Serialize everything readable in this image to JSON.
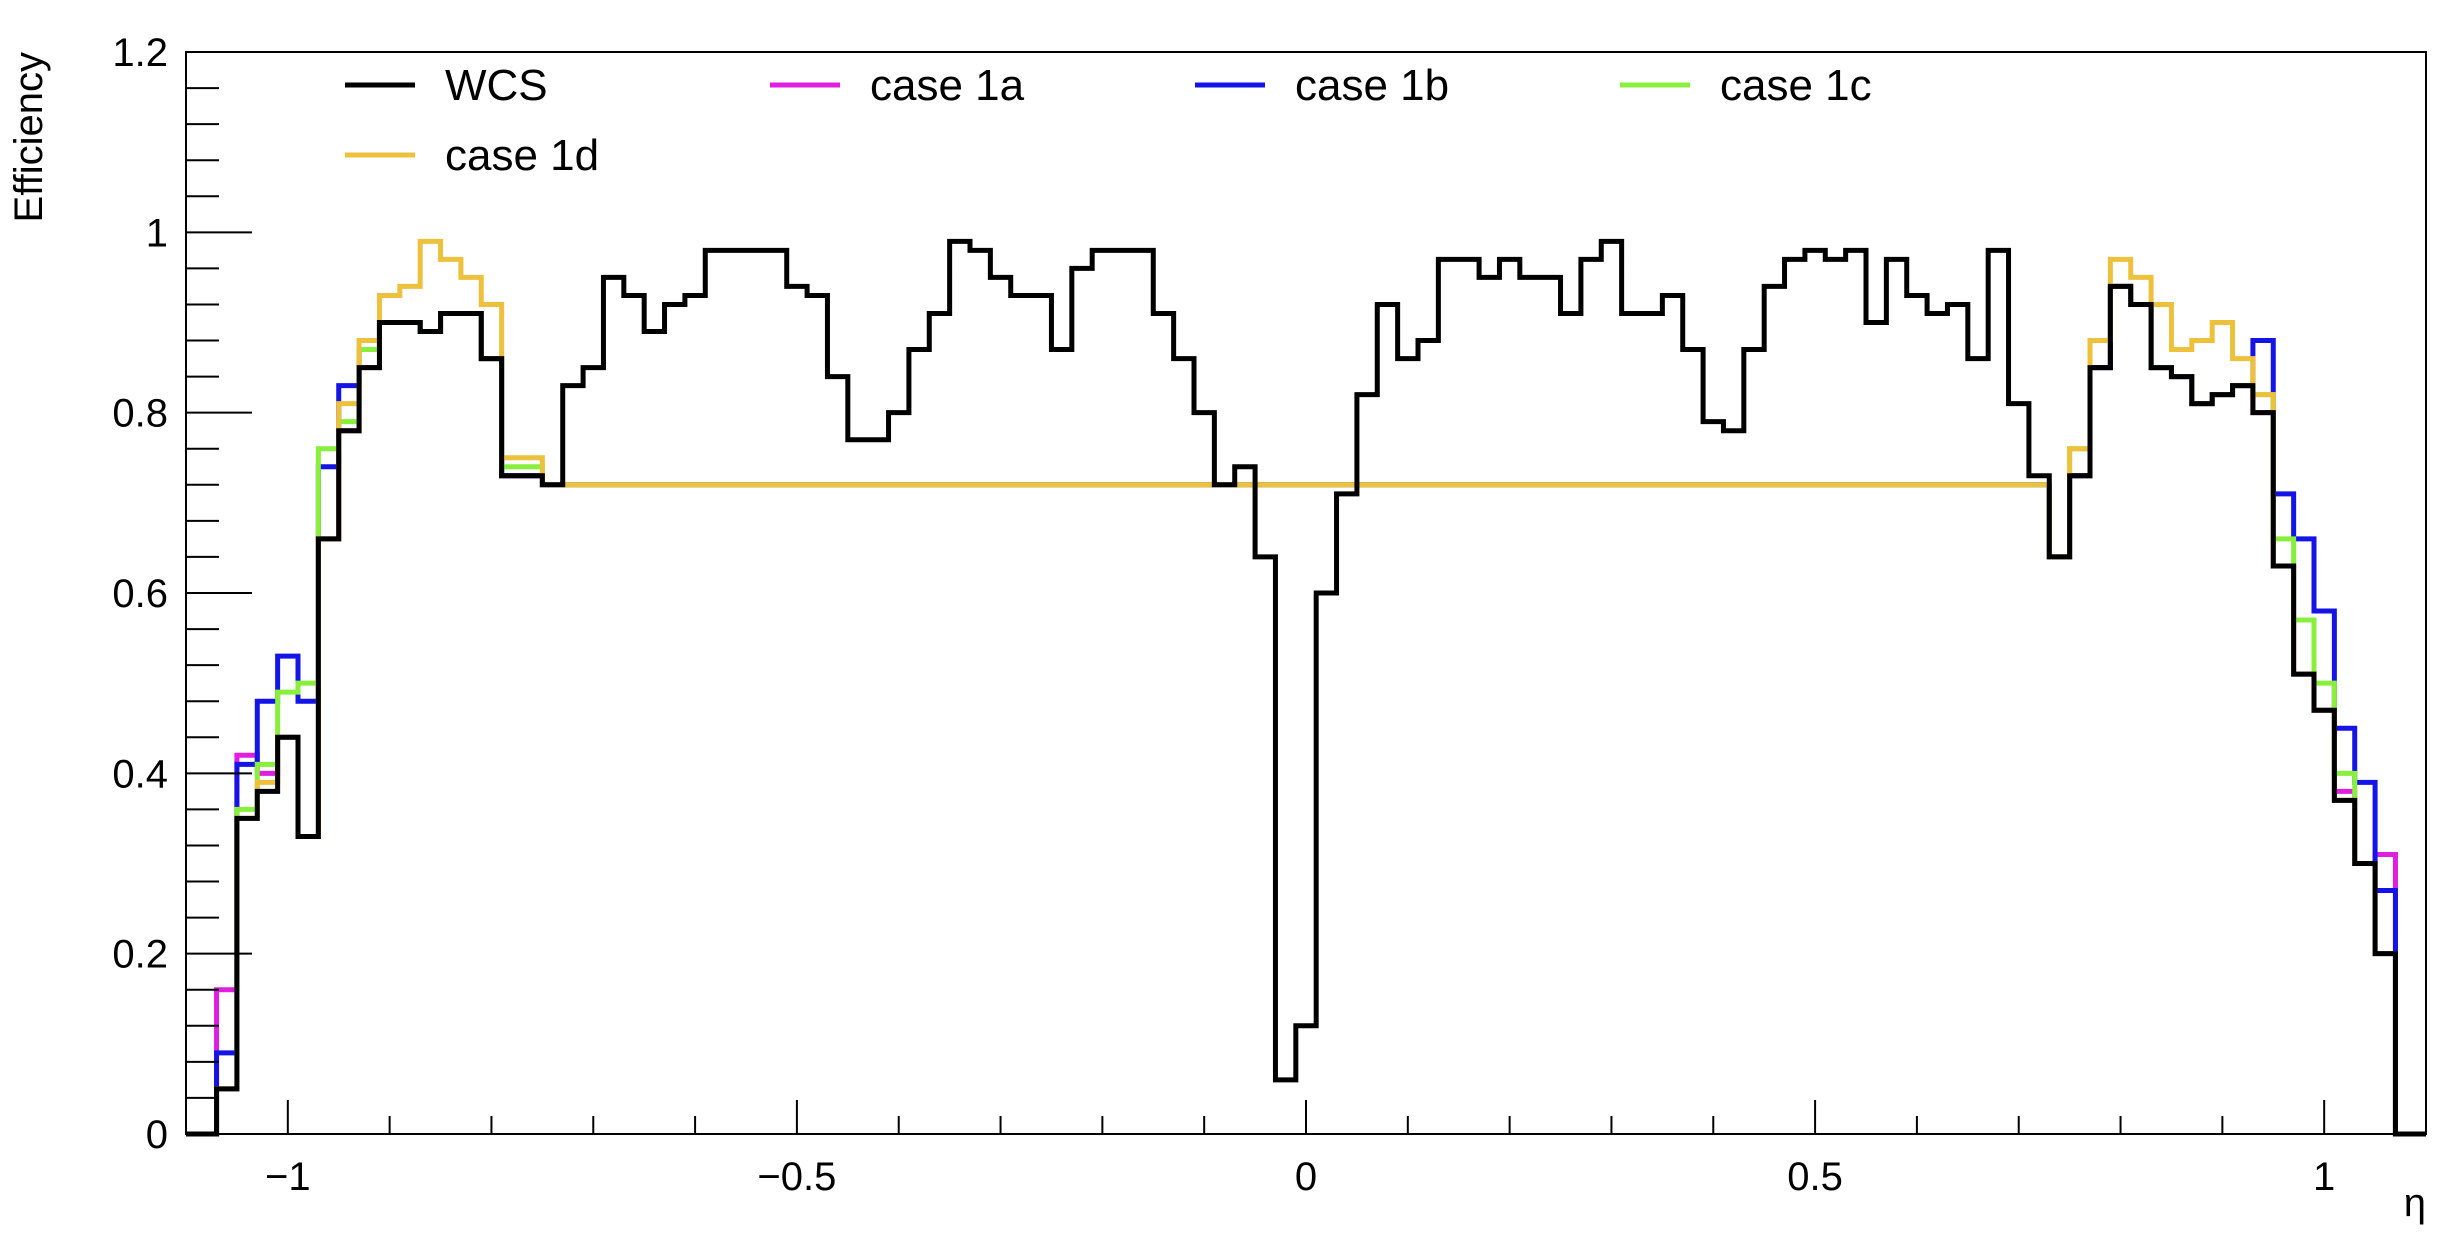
{
  "chart_data": {
    "type": "line",
    "style": "step-histogram",
    "xlabel": "η",
    "ylabel": "Efficiency",
    "xlim": [
      -1.1,
      1.1
    ],
    "ylim": [
      0,
      1.2
    ],
    "grid": false,
    "legend_placement": "top-left",
    "x_ticks": [
      {
        "value": -1,
        "label": "−1"
      },
      {
        "value": -0.5,
        "label": "−0.5"
      },
      {
        "value": 0,
        "label": "0"
      },
      {
        "value": 0.5,
        "label": "0.5"
      },
      {
        "value": 1,
        "label": "1"
      }
    ],
    "y_ticks": [
      {
        "value": 0,
        "label": "0"
      },
      {
        "value": 0.2,
        "label": "0.2"
      },
      {
        "value": 0.4,
        "label": "0.4"
      },
      {
        "value": 0.6,
        "label": "0.6"
      },
      {
        "value": 0.8,
        "label": "0.8"
      },
      {
        "value": 1,
        "label": "1"
      },
      {
        "value": 1.2,
        "label": "1.2"
      }
    ],
    "series": [
      {
        "name": "case 1a",
        "color": "#e01ee0",
        "points": [
          [
            -1.1,
            0
          ],
          [
            -1.07,
            0.16
          ],
          [
            -1.05,
            0.42
          ],
          [
            -1.03,
            0.4
          ],
          [
            -1.01,
            0.44
          ],
          [
            -0.99,
            0.33
          ],
          [
            -0.97,
            0.66
          ],
          [
            -0.95,
            0.78
          ],
          [
            -0.93,
            0.85
          ],
          [
            -0.91,
            0.9
          ],
          [
            -0.89,
            0.9
          ],
          [
            -0.87,
            0.89
          ],
          [
            -0.85,
            0.91
          ],
          [
            -0.83,
            0.91
          ],
          [
            -0.81,
            0.86
          ],
          [
            -0.79,
            0.73
          ],
          [
            -0.77,
            0.73
          ],
          [
            -0.75,
            0.72
          ],
          [
            0.73,
            0.64
          ],
          [
            0.75,
            0.73
          ],
          [
            0.77,
            0.85
          ],
          [
            0.79,
            0.94
          ],
          [
            0.81,
            0.92
          ],
          [
            0.83,
            0.85
          ],
          [
            0.85,
            0.84
          ],
          [
            0.87,
            0.81
          ],
          [
            0.89,
            0.82
          ],
          [
            0.91,
            0.83
          ],
          [
            0.93,
            0.8
          ],
          [
            0.95,
            0.63
          ],
          [
            0.97,
            0.51
          ],
          [
            0.99,
            0.47
          ],
          [
            1.01,
            0.38
          ],
          [
            1.03,
            0.3
          ],
          [
            1.05,
            0.31
          ],
          [
            1.07,
            0
          ]
        ]
      },
      {
        "name": "case 1b",
        "color": "#1414e6",
        "points": [
          [
            -1.1,
            0
          ],
          [
            -1.07,
            0.09
          ],
          [
            -1.05,
            0.41
          ],
          [
            -1.03,
            0.48
          ],
          [
            -1.01,
            0.53
          ],
          [
            -0.99,
            0.48
          ],
          [
            -0.97,
            0.74
          ],
          [
            -0.95,
            0.83
          ],
          [
            -0.93,
            0.87
          ],
          [
            -0.91,
            0.9
          ],
          [
            -0.89,
            0.9
          ],
          [
            -0.87,
            0.89
          ],
          [
            -0.85,
            0.91
          ],
          [
            -0.83,
            0.91
          ],
          [
            -0.81,
            0.86
          ],
          [
            -0.79,
            0.73
          ],
          [
            -0.77,
            0.73
          ],
          [
            -0.75,
            0.72
          ],
          [
            0.73,
            0.64
          ],
          [
            0.75,
            0.73
          ],
          [
            0.77,
            0.85
          ],
          [
            0.79,
            0.94
          ],
          [
            0.81,
            0.92
          ],
          [
            0.83,
            0.85
          ],
          [
            0.85,
            0.84
          ],
          [
            0.87,
            0.81
          ],
          [
            0.89,
            0.82
          ],
          [
            0.91,
            0.83
          ],
          [
            0.93,
            0.88
          ],
          [
            0.95,
            0.71
          ],
          [
            0.97,
            0.66
          ],
          [
            0.99,
            0.58
          ],
          [
            1.01,
            0.45
          ],
          [
            1.03,
            0.39
          ],
          [
            1.05,
            0.27
          ],
          [
            1.07,
            0
          ]
        ]
      },
      {
        "name": "case 1c",
        "color": "#88f03c",
        "points": [
          [
            -1.1,
            0
          ],
          [
            -1.07,
            0.05
          ],
          [
            -1.05,
            0.36
          ],
          [
            -1.03,
            0.41
          ],
          [
            -1.01,
            0.49
          ],
          [
            -0.99,
            0.5
          ],
          [
            -0.97,
            0.76
          ],
          [
            -0.95,
            0.79
          ],
          [
            -0.93,
            0.87
          ],
          [
            -0.91,
            0.9
          ],
          [
            -0.89,
            0.9
          ],
          [
            -0.87,
            0.89
          ],
          [
            -0.85,
            0.91
          ],
          [
            -0.83,
            0.91
          ],
          [
            -0.81,
            0.86
          ],
          [
            -0.79,
            0.74
          ],
          [
            -0.77,
            0.74
          ],
          [
            -0.75,
            0.72
          ],
          [
            0.73,
            0.64
          ],
          [
            0.75,
            0.76
          ],
          [
            0.77,
            0.88
          ],
          [
            0.79,
            0.94
          ],
          [
            0.81,
            0.92
          ],
          [
            0.83,
            0.85
          ],
          [
            0.85,
            0.84
          ],
          [
            0.87,
            0.81
          ],
          [
            0.89,
            0.82
          ],
          [
            0.91,
            0.83
          ],
          [
            0.93,
            0.82
          ],
          [
            0.95,
            0.66
          ],
          [
            0.97,
            0.57
          ],
          [
            0.99,
            0.5
          ],
          [
            1.01,
            0.4
          ],
          [
            1.03,
            0.3
          ],
          [
            1.05,
            0.2
          ],
          [
            1.07,
            0
          ]
        ]
      },
      {
        "name": "case 1d",
        "color": "#eec13c",
        "points": [
          [
            -1.1,
            0
          ],
          [
            -1.07,
            0.05
          ],
          [
            -1.05,
            0.35
          ],
          [
            -1.03,
            0.39
          ],
          [
            -1.01,
            0.44
          ],
          [
            -0.99,
            0.33
          ],
          [
            -0.97,
            0.66
          ],
          [
            -0.95,
            0.81
          ],
          [
            -0.93,
            0.88
          ],
          [
            -0.91,
            0.93
          ],
          [
            -0.89,
            0.94
          ],
          [
            -0.87,
            0.99
          ],
          [
            -0.85,
            0.97
          ],
          [
            -0.83,
            0.95
          ],
          [
            -0.81,
            0.92
          ],
          [
            -0.79,
            0.75
          ],
          [
            -0.77,
            0.75
          ],
          [
            -0.75,
            0.72
          ],
          [
            0.73,
            0.64
          ],
          [
            0.75,
            0.76
          ],
          [
            0.77,
            0.88
          ],
          [
            0.79,
            0.97
          ],
          [
            0.81,
            0.95
          ],
          [
            0.83,
            0.92
          ],
          [
            0.85,
            0.87
          ],
          [
            0.87,
            0.88
          ],
          [
            0.89,
            0.9
          ],
          [
            0.91,
            0.86
          ],
          [
            0.93,
            0.82
          ],
          [
            0.95,
            0.63
          ],
          [
            0.97,
            0.51
          ],
          [
            0.99,
            0.47
          ],
          [
            1.01,
            0.37
          ],
          [
            1.03,
            0.3
          ],
          [
            1.05,
            0.2
          ],
          [
            1.07,
            0
          ]
        ]
      },
      {
        "name": "WCS",
        "color": "#000000",
        "points": [
          [
            -1.1,
            0
          ],
          [
            -1.07,
            0.05
          ],
          [
            -1.05,
            0.35
          ],
          [
            -1.03,
            0.38
          ],
          [
            -1.01,
            0.44
          ],
          [
            -0.99,
            0.33
          ],
          [
            -0.97,
            0.66
          ],
          [
            -0.95,
            0.78
          ],
          [
            -0.93,
            0.85
          ],
          [
            -0.91,
            0.9
          ],
          [
            -0.89,
            0.9
          ],
          [
            -0.87,
            0.89
          ],
          [
            -0.85,
            0.91
          ],
          [
            -0.83,
            0.91
          ],
          [
            -0.81,
            0.86
          ],
          [
            -0.79,
            0.73
          ],
          [
            -0.77,
            0.73
          ],
          [
            -0.75,
            0.72
          ],
          [
            -0.73,
            0.83
          ],
          [
            -0.71,
            0.85
          ],
          [
            -0.69,
            0.95
          ],
          [
            -0.67,
            0.93
          ],
          [
            -0.65,
            0.89
          ],
          [
            -0.63,
            0.92
          ],
          [
            -0.61,
            0.93
          ],
          [
            -0.59,
            0.98
          ],
          [
            -0.57,
            0.98
          ],
          [
            -0.55,
            0.98
          ],
          [
            -0.53,
            0.98
          ],
          [
            -0.51,
            0.94
          ],
          [
            -0.49,
            0.93
          ],
          [
            -0.47,
            0.84
          ],
          [
            -0.45,
            0.77
          ],
          [
            -0.43,
            0.77
          ],
          [
            -0.41,
            0.8
          ],
          [
            -0.39,
            0.87
          ],
          [
            -0.37,
            0.91
          ],
          [
            -0.35,
            0.99
          ],
          [
            -0.33,
            0.98
          ],
          [
            -0.31,
            0.95
          ],
          [
            -0.29,
            0.93
          ],
          [
            -0.27,
            0.93
          ],
          [
            -0.25,
            0.87
          ],
          [
            -0.23,
            0.96
          ],
          [
            -0.21,
            0.98
          ],
          [
            -0.19,
            0.98
          ],
          [
            -0.17,
            0.98
          ],
          [
            -0.15,
            0.91
          ],
          [
            -0.13,
            0.86
          ],
          [
            -0.11,
            0.8
          ],
          [
            -0.09,
            0.72
          ],
          [
            -0.07,
            0.74
          ],
          [
            -0.05,
            0.64
          ],
          [
            -0.03,
            0.06
          ],
          [
            -0.01,
            0.12
          ],
          [
            0.01,
            0.6
          ],
          [
            0.03,
            0.71
          ],
          [
            0.05,
            0.82
          ],
          [
            0.07,
            0.92
          ],
          [
            0.09,
            0.86
          ],
          [
            0.11,
            0.88
          ],
          [
            0.13,
            0.97
          ],
          [
            0.15,
            0.97
          ],
          [
            0.17,
            0.95
          ],
          [
            0.19,
            0.97
          ],
          [
            0.21,
            0.95
          ],
          [
            0.23,
            0.95
          ],
          [
            0.25,
            0.91
          ],
          [
            0.27,
            0.97
          ],
          [
            0.29,
            0.99
          ],
          [
            0.31,
            0.91
          ],
          [
            0.33,
            0.91
          ],
          [
            0.35,
            0.93
          ],
          [
            0.37,
            0.87
          ],
          [
            0.39,
            0.79
          ],
          [
            0.41,
            0.78
          ],
          [
            0.43,
            0.87
          ],
          [
            0.45,
            0.94
          ],
          [
            0.47,
            0.97
          ],
          [
            0.49,
            0.98
          ],
          [
            0.51,
            0.97
          ],
          [
            0.53,
            0.98
          ],
          [
            0.55,
            0.9
          ],
          [
            0.57,
            0.97
          ],
          [
            0.59,
            0.93
          ],
          [
            0.61,
            0.91
          ],
          [
            0.63,
            0.92
          ],
          [
            0.65,
            0.86
          ],
          [
            0.67,
            0.98
          ],
          [
            0.69,
            0.81
          ],
          [
            0.71,
            0.73
          ],
          [
            0.73,
            0.64
          ],
          [
            0.75,
            0.73
          ],
          [
            0.77,
            0.85
          ],
          [
            0.79,
            0.94
          ],
          [
            0.81,
            0.92
          ],
          [
            0.83,
            0.85
          ],
          [
            0.85,
            0.84
          ],
          [
            0.87,
            0.81
          ],
          [
            0.89,
            0.82
          ],
          [
            0.91,
            0.83
          ],
          [
            0.93,
            0.8
          ],
          [
            0.95,
            0.63
          ],
          [
            0.97,
            0.51
          ],
          [
            0.99,
            0.47
          ],
          [
            1.01,
            0.37
          ],
          [
            1.03,
            0.3
          ],
          [
            1.05,
            0.2
          ],
          [
            1.07,
            0
          ]
        ]
      }
    ],
    "legend_order": [
      "WCS",
      "case 1a",
      "case 1b",
      "case 1c",
      "case 1d"
    ]
  }
}
